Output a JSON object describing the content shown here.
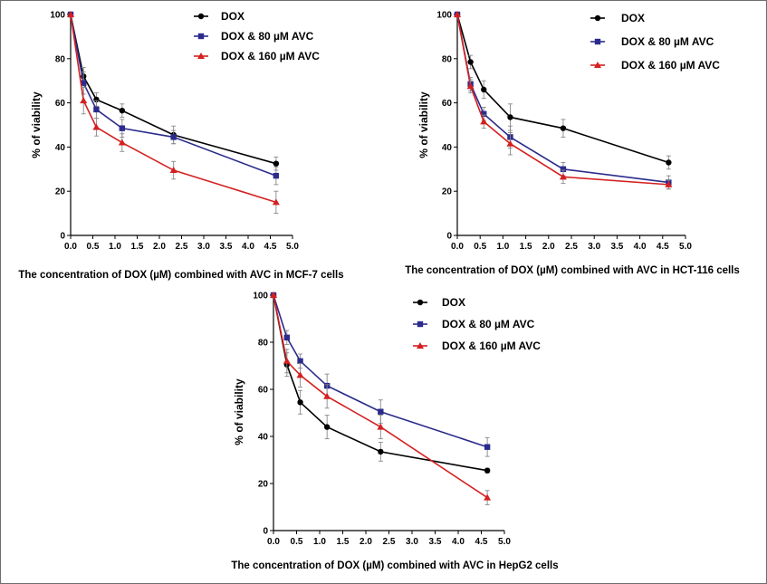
{
  "chart_data": [
    {
      "type": "line",
      "xlabel": "The concentration of DOX (µM) combined with AVC in MCF-7 cells",
      "ylabel": "% of viability",
      "xlim": [
        0,
        5
      ],
      "ylim": [
        0,
        100
      ],
      "xticks": [
        "0.0",
        "0.5",
        "1.0",
        "1.5",
        "2.0",
        "2.5",
        "3.0",
        "3.5",
        "4.0",
        "4.5",
        "5.0"
      ],
      "yticks": [
        "0",
        "20",
        "40",
        "60",
        "80",
        "100"
      ],
      "legend_position": "top-center",
      "series": [
        {
          "name": "DOX",
          "color": "#000000",
          "marker": "circle",
          "x": [
            0,
            0.29,
            0.58,
            1.16,
            2.32,
            4.63
          ],
          "y": [
            100,
            72,
            61.5,
            56.5,
            45.5,
            32.5
          ],
          "err": [
            0,
            4,
            3,
            3,
            4,
            3
          ]
        },
        {
          "name": "DOX & 80 µM AVC",
          "color": "#2b2b8c",
          "marker": "square",
          "x": [
            0,
            0.29,
            0.58,
            1.16,
            2.32,
            4.63
          ],
          "y": [
            100,
            69,
            57,
            48.5,
            44.5,
            27
          ],
          "err": [
            0,
            5,
            4,
            4,
            3,
            4
          ]
        },
        {
          "name": "DOX & 160 µM AVC",
          "color": "#d42020",
          "marker": "triangle",
          "x": [
            0,
            0.29,
            0.58,
            1.16,
            2.32,
            4.63
          ],
          "y": [
            100,
            61,
            49,
            42,
            29.5,
            15
          ],
          "err": [
            0,
            6,
            4,
            4,
            4,
            5
          ]
        }
      ]
    },
    {
      "type": "line",
      "xlabel": "The concentration of DOX (µM) combined with AVC in HCT-116 cells",
      "ylabel": "% of viability",
      "xlim": [
        0,
        5
      ],
      "ylim": [
        0,
        100
      ],
      "xticks": [
        "0.0",
        "0.5",
        "1.0",
        "1.5",
        "2.0",
        "2.5",
        "3.0",
        "3.5",
        "4.0",
        "4.5",
        "5.0"
      ],
      "yticks": [
        "0",
        "20",
        "40",
        "60",
        "80",
        "100"
      ],
      "legend_position": "top-right",
      "series": [
        {
          "name": "DOX",
          "color": "#000000",
          "marker": "circle",
          "x": [
            0,
            0.29,
            0.58,
            1.16,
            2.32,
            4.63
          ],
          "y": [
            100,
            78.5,
            66,
            53.5,
            48.5,
            33
          ],
          "err": [
            0,
            3,
            4,
            6,
            4,
            3
          ]
        },
        {
          "name": "DOX & 80 µM AVC",
          "color": "#2b2b8c",
          "marker": "square",
          "x": [
            0,
            0.29,
            0.58,
            1.16,
            2.32,
            4.63
          ],
          "y": [
            100,
            68.5,
            55,
            44.5,
            30,
            24
          ],
          "err": [
            0,
            3,
            3,
            5,
            3,
            3
          ]
        },
        {
          "name": "DOX & 160 µM AVC",
          "color": "#d42020",
          "marker": "triangle",
          "x": [
            0,
            0.29,
            0.58,
            1.16,
            2.32,
            4.63
          ],
          "y": [
            100,
            67.5,
            51.5,
            41.5,
            26.5,
            23
          ],
          "err": [
            0,
            3,
            3,
            5,
            3,
            2
          ]
        }
      ]
    },
    {
      "type": "line",
      "xlabel": "The concentration of DOX (µM) combined with AVC in HepG2 cells",
      "ylabel": "% of viability",
      "xlim": [
        0,
        5
      ],
      "ylim": [
        0,
        100
      ],
      "xticks": [
        "0.0",
        "0.5",
        "1.0",
        "1.5",
        "2.0",
        "2.5",
        "3.0",
        "3.5",
        "4.0",
        "4.5",
        "5.0"
      ],
      "yticks": [
        "0",
        "20",
        "40",
        "60",
        "80",
        "100"
      ],
      "legend_position": "top-right",
      "series": [
        {
          "name": "DOX",
          "color": "#000000",
          "marker": "circle",
          "x": [
            0,
            0.29,
            0.58,
            1.16,
            2.32,
            4.63
          ],
          "y": [
            100,
            70.5,
            54.5,
            44,
            33.5,
            25.5
          ],
          "err": [
            0,
            5,
            5,
            5,
            4,
            1
          ]
        },
        {
          "name": "DOX & 80 µM AVC",
          "color": "#2b2b8c",
          "marker": "square",
          "x": [
            0,
            0.29,
            0.58,
            1.16,
            2.32,
            4.63
          ],
          "y": [
            100,
            82,
            72,
            61.5,
            50.5,
            35.5
          ],
          "err": [
            0,
            3,
            3,
            5,
            5,
            4
          ]
        },
        {
          "name": "DOX & 160 µM AVC",
          "color": "#d42020",
          "marker": "triangle",
          "x": [
            0,
            0.29,
            0.58,
            1.16,
            2.32,
            4.63
          ],
          "y": [
            100,
            72,
            66,
            57,
            44,
            14
          ],
          "err": [
            0,
            5,
            5,
            5,
            5,
            3
          ]
        }
      ]
    }
  ]
}
